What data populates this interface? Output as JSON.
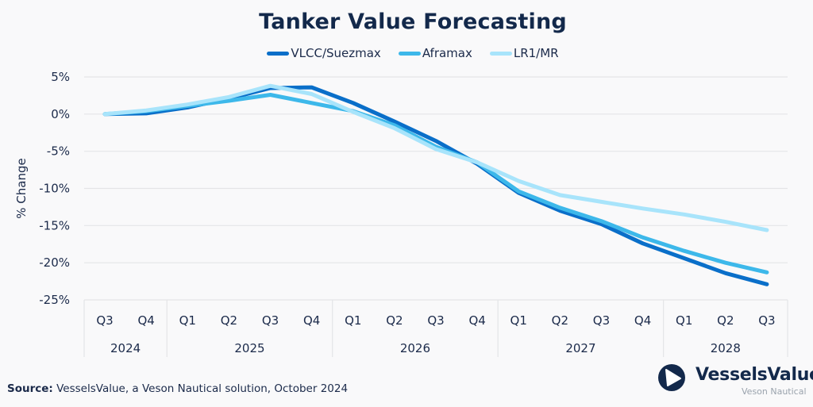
{
  "chart_data": {
    "type": "line",
    "title": "Tanker Value Forecasting",
    "xlabel": "",
    "ylabel": "% Change",
    "ylim": [
      -25,
      5
    ],
    "yticks": [
      5,
      0,
      -5,
      -10,
      -15,
      -20,
      -25
    ],
    "ytick_labels": [
      "5%",
      "0%",
      "-5%",
      "-10%",
      "-15%",
      "-20%",
      "-25%"
    ],
    "grid": true,
    "legend_position": "top-center",
    "categories": [
      "Q3",
      "Q4",
      "Q1",
      "Q2",
      "Q3",
      "Q4",
      "Q1",
      "Q2",
      "Q3",
      "Q4",
      "Q1",
      "Q2",
      "Q3",
      "Q4",
      "Q1",
      "Q2",
      "Q3"
    ],
    "year_groups": [
      {
        "label": "2024",
        "count": 2
      },
      {
        "label": "2025",
        "count": 4
      },
      {
        "label": "2026",
        "count": 4
      },
      {
        "label": "2027",
        "count": 4
      },
      {
        "label": "2028",
        "count": 3
      }
    ],
    "series": [
      {
        "name": "VLCC/Suezmax",
        "color": "#0a6fc9",
        "values": [
          0,
          0.1,
          0.9,
          2.1,
          3.5,
          3.6,
          1.5,
          -1.0,
          -3.6,
          -6.7,
          -10.6,
          -13.0,
          -14.8,
          -17.4,
          -19.4,
          -21.4,
          -22.9
        ]
      },
      {
        "name": "Aframax",
        "color": "#3db8ea",
        "values": [
          0,
          0.4,
          1.1,
          1.8,
          2.6,
          1.5,
          0.4,
          -1.5,
          -4.4,
          -6.5,
          -10.4,
          -12.6,
          -14.4,
          -16.6,
          -18.4,
          -20.0,
          -21.3
        ]
      },
      {
        "name": "LR1/MR",
        "color": "#a8e4fb",
        "values": [
          0,
          0.5,
          1.3,
          2.3,
          3.8,
          2.7,
          0.3,
          -1.9,
          -4.7,
          -6.5,
          -9.0,
          -10.9,
          -11.8,
          -12.7,
          -13.5,
          -14.5,
          -15.6
        ]
      }
    ]
  },
  "source": {
    "label": "Source:",
    "text": "VesselsValue, a Veson Nautical solution, October 2024"
  },
  "logo": {
    "name": "VesselsValue",
    "subtitle": "Veson Nautical"
  }
}
